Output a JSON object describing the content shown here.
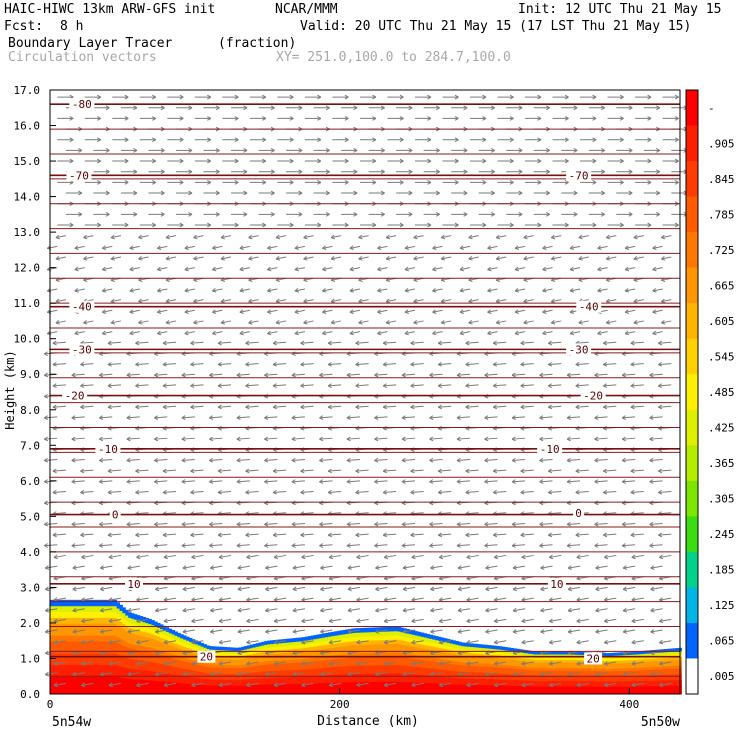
{
  "header": {
    "model": "HAIC-HIWC 13km ARW-GFS init",
    "org": "NCAR/MMM",
    "init": "Init: 12 UTC Thu 21 May 15",
    "fcst_label": "Fcst:",
    "fcst_value": "8 h",
    "valid": "Valid: 20 UTC Thu 21 May 15 (17 LST Thu 21 May 15)",
    "field": "Boundary Layer Tracer",
    "units": "(fraction)",
    "vectors": "Circulation vectors",
    "xy": "XY= 251.0,100.0 to 284.7,100.0"
  },
  "chart_data": {
    "type": "heatmap",
    "ylabel": "Height (km)",
    "xlabel": "Distance (km)",
    "xlim": [
      0,
      435
    ],
    "ylim": [
      0,
      17
    ],
    "x_ticks": [
      "0",
      "200",
      "400"
    ],
    "x_end_labels": [
      "5n54w",
      "5n50w"
    ],
    "y_ticks": [
      "0.0",
      "1.0",
      "2.0",
      "3.0",
      "4.0",
      "5.0",
      "6.0",
      "7.0",
      "8.0",
      "9.0",
      "10.0",
      "11.0",
      "12.0",
      "13.0",
      "14.0",
      "15.0",
      "16.0",
      "17.0"
    ],
    "colorbar_labels": [
      "-",
      ".905",
      ".845",
      ".785",
      ".725",
      ".665",
      ".605",
      ".545",
      ".485",
      ".425",
      ".365",
      ".305",
      ".245",
      ".185",
      ".125",
      ".065",
      ".005"
    ],
    "colorbar_colors": [
      "#fe0000",
      "#fe1e00",
      "#fe3c00",
      "#fe5a00",
      "#fe7800",
      "#fe9600",
      "#feb400",
      "#fed200",
      "#fef000",
      "#dcf000",
      "#b4ec00",
      "#7ce600",
      "#3cdc14",
      "#00d28c",
      "#00b4e6",
      "#0064ff",
      "#ffffff"
    ],
    "tracer_top_km": [
      [
        0,
        2.65
      ],
      [
        45,
        2.65
      ],
      [
        55,
        2.3
      ],
      [
        70,
        2.1
      ],
      [
        90,
        1.7
      ],
      [
        110,
        1.35
      ],
      [
        130,
        1.3
      ],
      [
        150,
        1.5
      ],
      [
        175,
        1.6
      ],
      [
        195,
        1.75
      ],
      [
        210,
        1.85
      ],
      [
        240,
        1.9
      ],
      [
        260,
        1.7
      ],
      [
        285,
        1.45
      ],
      [
        310,
        1.35
      ],
      [
        335,
        1.2
      ],
      [
        360,
        1.2
      ],
      [
        385,
        1.15
      ],
      [
        405,
        1.2
      ],
      [
        420,
        1.25
      ],
      [
        435,
        1.3
      ]
    ],
    "isotherms": [
      {
        "label": "-80",
        "y": 16.6
      },
      {
        "label": "-70",
        "y": 14.6
      },
      {
        "label": "-40",
        "y": 10.9
      },
      {
        "label": "-30",
        "y": 9.7
      },
      {
        "label": "-20",
        "y": 8.4
      },
      {
        "label": "-10",
        "y": 6.9
      },
      {
        "label": "0",
        "y": 5.05
      },
      {
        "label": "10",
        "y": 3.1
      },
      {
        "label": "20",
        "y": 1.05
      }
    ],
    "isotherm_labels_at_km": [
      {
        "label": "-80",
        "x": 22,
        "y": 16.6
      },
      {
        "label": "-70",
        "x": 20,
        "y": 14.6
      },
      {
        "label": "-70",
        "x": 365,
        "y": 14.6
      },
      {
        "label": "-40",
        "x": 22,
        "y": 10.9
      },
      {
        "label": "-40",
        "x": 372,
        "y": 10.9
      },
      {
        "label": "-30",
        "x": 22,
        "y": 9.7
      },
      {
        "label": "-30",
        "x": 365,
        "y": 9.7
      },
      {
        "label": "-20",
        "x": 17,
        "y": 8.4
      },
      {
        "label": "-20",
        "x": 375,
        "y": 8.4
      },
      {
        "label": "-10",
        "x": 40,
        "y": 6.9
      },
      {
        "label": "-10",
        "x": 345,
        "y": 6.9
      },
      {
        "label": "0",
        "x": 45,
        "y": 5.05
      },
      {
        "label": "0",
        "x": 365,
        "y": 5.1
      },
      {
        "label": "10",
        "x": 58,
        "y": 3.1
      },
      {
        "label": "10",
        "x": 350,
        "y": 3.1
      },
      {
        "label": "20",
        "x": 108,
        "y": 1.05
      },
      {
        "label": "20",
        "x": 375,
        "y": 1.0
      }
    ],
    "grid": false,
    "legend": "colorbar-right"
  }
}
